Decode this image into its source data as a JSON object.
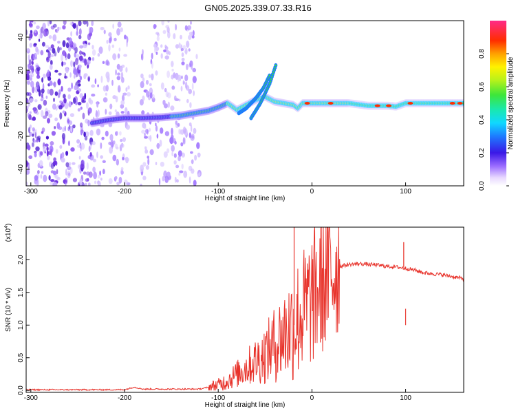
{
  "title": "GN05.2025.339.07.33.R16",
  "chart_data": [
    {
      "type": "heatmap",
      "name": "spectrogram",
      "xlabel": "Height of straight line (km)",
      "ylabel": "Frequency (Hz)",
      "xlim": [
        -305,
        162
      ],
      "ylim": [
        -50,
        50
      ],
      "xticks": [
        -300,
        -200,
        -100,
        0,
        100
      ],
      "xtick_labels": [
        "-300",
        "-200",
        "-100",
        "0",
        "100"
      ],
      "yticks": [
        -40,
        -20,
        0,
        20,
        40
      ],
      "ytick_labels": [
        "-40",
        "-20",
        "0",
        "20",
        "40"
      ],
      "colorbar": {
        "label": "Normalized spectral amplitude",
        "range": [
          0,
          1
        ],
        "ticks": [
          0.0,
          0.2,
          0.4,
          0.6,
          0.8
        ],
        "tick_labels": [
          "0.0",
          "0.2",
          "0.4",
          "0.6",
          "0.8"
        ]
      },
      "ridge": {
        "x": [
          -235,
          -215,
          -200,
          -180,
          -160,
          -140,
          -125,
          -110,
          -100,
          -90,
          -80,
          -70,
          -60,
          -50,
          -40,
          -30,
          -20,
          -15,
          -10,
          0,
          20,
          40,
          60,
          80,
          90,
          100,
          120,
          140,
          162
        ],
        "freq": [
          -12,
          -10,
          -9,
          -9,
          -8.5,
          -7.5,
          -6,
          -4.5,
          -2.5,
          0,
          -4,
          -1,
          2,
          4,
          1,
          0,
          -1,
          -3,
          0,
          0,
          0,
          0,
          -1.5,
          -1.5,
          -2,
          0,
          0,
          0,
          0
        ]
      },
      "branches": [
        {
          "x": [
            -78,
            -70,
            -60,
            -52,
            -45
          ],
          "freq": [
            -6,
            -3,
            3,
            9,
            17
          ]
        },
        {
          "x": [
            -65,
            -55,
            -45,
            -38
          ],
          "freq": [
            -9,
            0,
            12,
            24
          ]
        }
      ],
      "noise_region": [
        -305,
        -120
      ]
    },
    {
      "type": "line",
      "name": "snr",
      "xlabel": "Height of straight line (km)",
      "ylabel": "SNR (10 * v/v)",
      "multiplier": "(x10",
      "multiplier_exp": "4",
      "multiplier_close": ")",
      "xlim": [
        -305,
        162
      ],
      "ylim": [
        -0.03,
        2.5
      ],
      "xticks": [
        -300,
        -200,
        -100,
        0,
        100
      ],
      "xtick_labels": [
        "-300",
        "-200",
        "-100",
        "0",
        "100"
      ],
      "yticks": [
        0.0,
        0.5,
        1.0,
        1.5,
        2.0
      ],
      "ytick_labels": [
        "0.0",
        "0.5",
        "1.0",
        "1.5",
        "2.0"
      ],
      "color": "#e8342c",
      "series": {
        "x": [
          -305,
          -200,
          -190,
          -180,
          -120,
          -100,
          -90,
          -80,
          -70,
          -60,
          -50,
          -40,
          -30,
          -20,
          -10,
          0,
          10,
          20,
          30,
          40,
          50,
          60,
          70,
          80,
          90,
          95,
          100,
          110,
          120,
          140,
          162
        ],
        "y": [
          0.01,
          0.01,
          0.05,
          0.02,
          0.02,
          0.08,
          0.15,
          0.25,
          0.35,
          0.45,
          0.55,
          0.7,
          0.85,
          1.0,
          1.2,
          1.4,
          1.6,
          1.8,
          1.9,
          1.93,
          1.94,
          1.93,
          1.92,
          1.9,
          1.89,
          1.88,
          1.87,
          1.84,
          1.8,
          1.77,
          1.71
        ]
      },
      "spikes": [
        {
          "x": -19,
          "y": 2.5
        },
        {
          "x": 100,
          "y": 1.25
        }
      ]
    }
  ]
}
